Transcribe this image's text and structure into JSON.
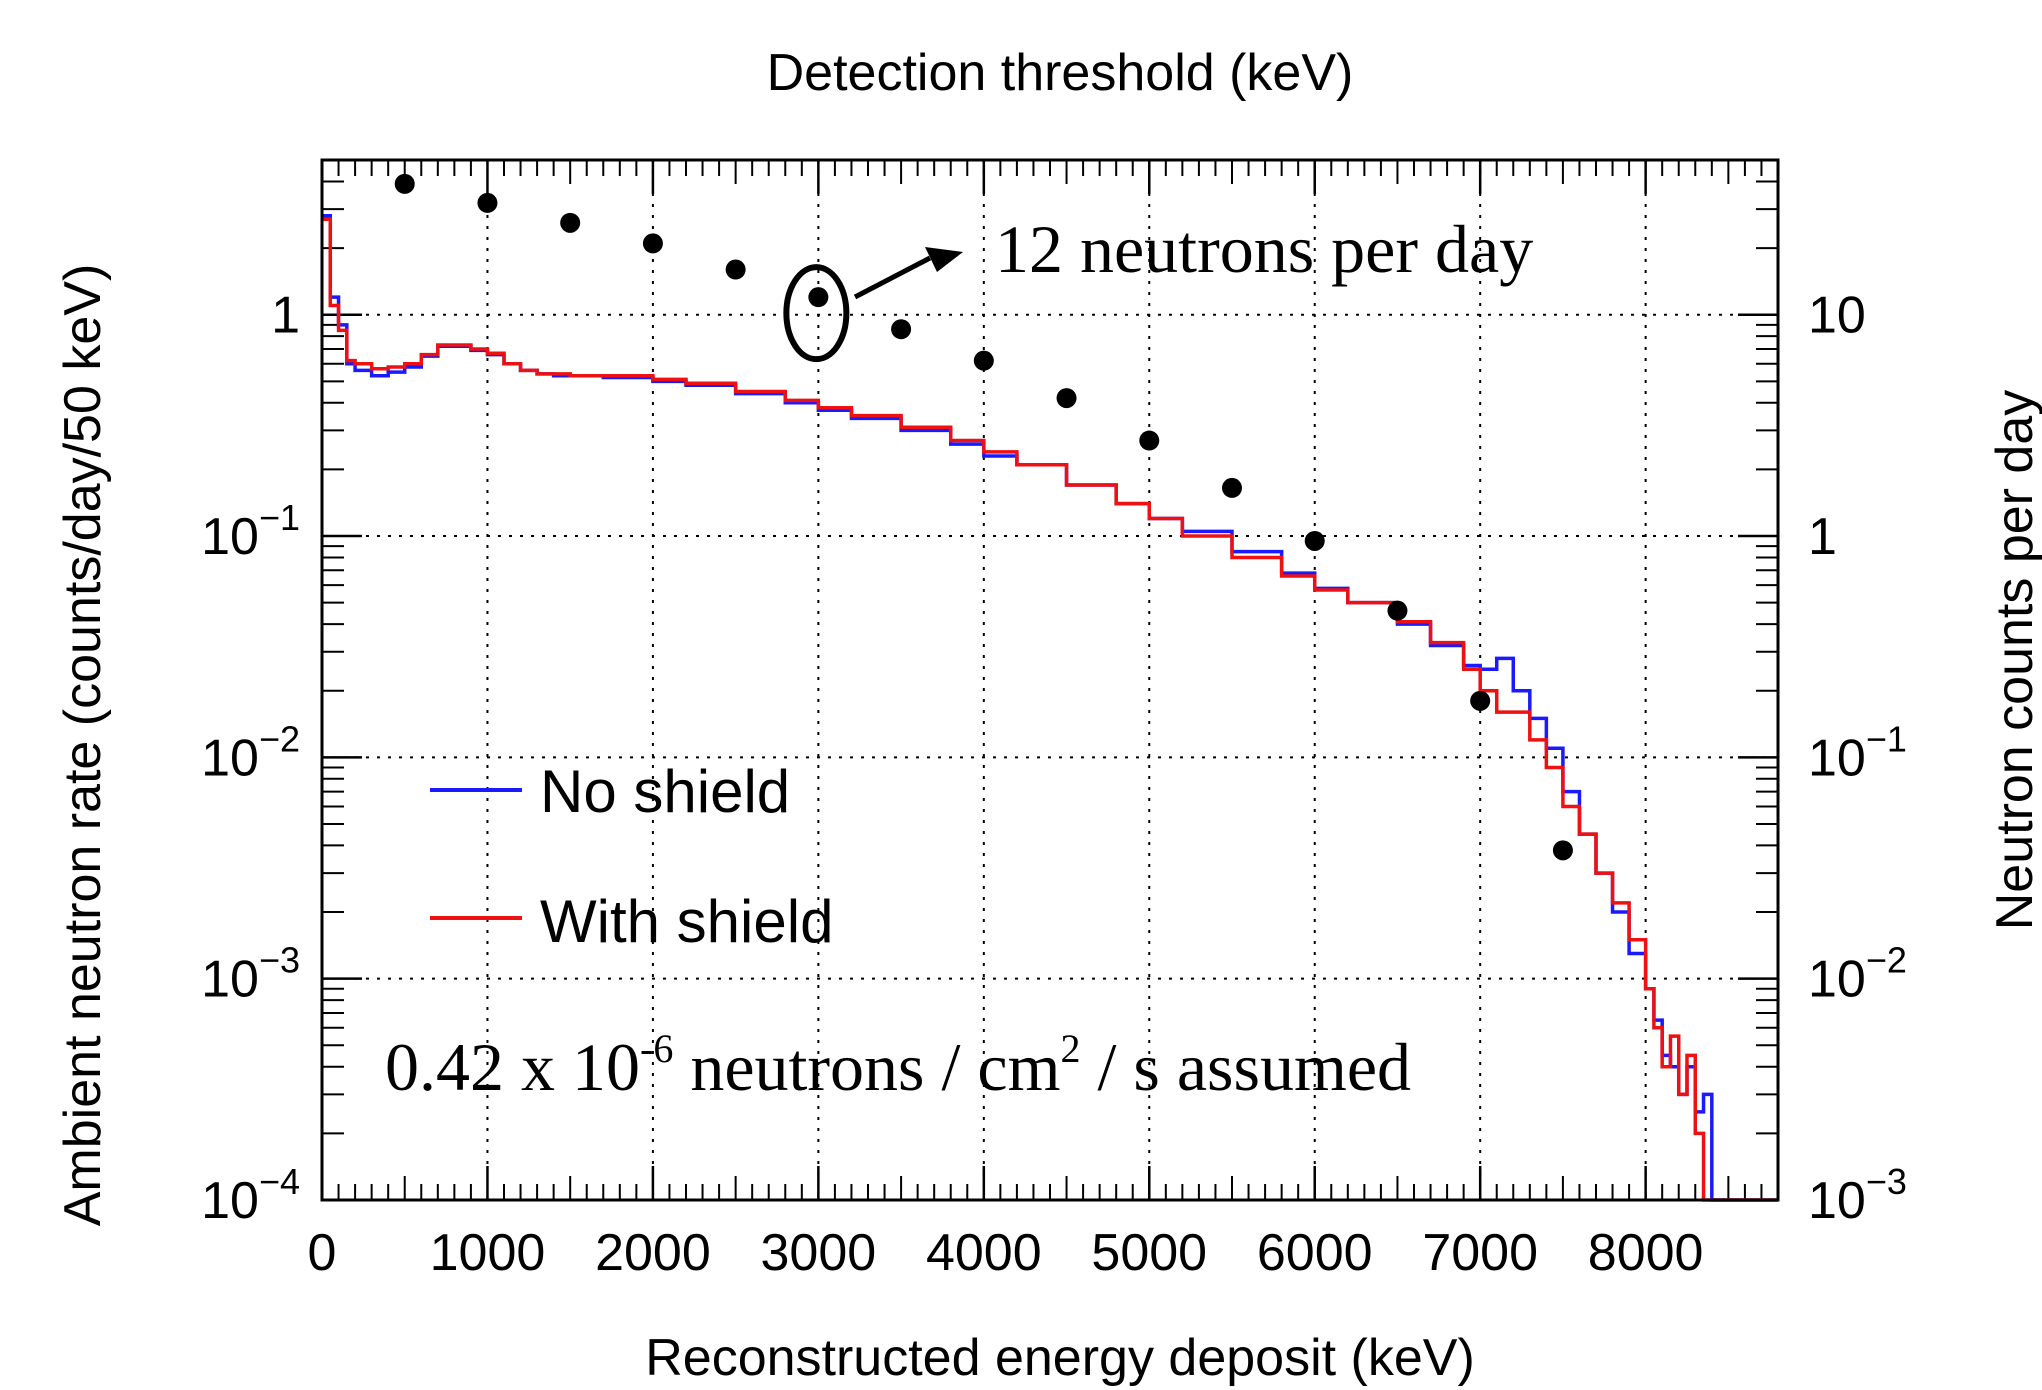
{
  "chart_data": {
    "type": "line",
    "title": "",
    "xlabel": "Reconstructed energy deposit (keV)",
    "x2label": "Detection threshold (keV)",
    "ylabel": "Ambient neutron rate (counts/day/50 keV)",
    "y2label": "Neutron counts per day",
    "xlim": [
      0,
      8800
    ],
    "ylim": [
      0.0001,
      5
    ],
    "y2lim": [
      0.001,
      50
    ],
    "yscale": "log",
    "grid": true,
    "xticks": [
      {
        "value": 0,
        "label": "0"
      },
      {
        "value": 1000,
        "label": "1000"
      },
      {
        "value": 2000,
        "label": "2000"
      },
      {
        "value": 3000,
        "label": "3000"
      },
      {
        "value": 4000,
        "label": "4000"
      },
      {
        "value": 5000,
        "label": "5000"
      },
      {
        "value": 6000,
        "label": "6000"
      },
      {
        "value": 7000,
        "label": "7000"
      },
      {
        "value": 8000,
        "label": "8000"
      }
    ],
    "yticks": [
      {
        "value": 1,
        "base": "1",
        "exp": ""
      },
      {
        "value": 0.1,
        "base": "10",
        "exp": "−1"
      },
      {
        "value": 0.01,
        "base": "10",
        "exp": "−2"
      },
      {
        "value": 0.001,
        "base": "10",
        "exp": "−3"
      },
      {
        "value": 0.0001,
        "base": "10",
        "exp": "−4"
      }
    ],
    "y2ticks": [
      {
        "value": 10,
        "base": "10",
        "exp": ""
      },
      {
        "value": 1,
        "base": "1",
        "exp": ""
      },
      {
        "value": 0.1,
        "base": "10",
        "exp": "−1"
      },
      {
        "value": 0.01,
        "base": "10",
        "exp": "−2"
      },
      {
        "value": 0.001,
        "base": "10",
        "exp": "−3"
      }
    ],
    "legend_position": "left",
    "series": [
      {
        "name": "No shield",
        "kind": "step",
        "axis": "left",
        "color": "#1a1aff",
        "x": [
          0,
          50,
          100,
          150,
          200,
          300,
          400,
          500,
          600,
          700,
          800,
          900,
          1000,
          1100,
          1200,
          1300,
          1400,
          1500,
          1700,
          2000,
          2200,
          2500,
          2800,
          3000,
          3200,
          3500,
          3800,
          4000,
          4200,
          4500,
          4800,
          5000,
          5200,
          5500,
          5800,
          6000,
          6200,
          6500,
          6700,
          6900,
          7000,
          7100,
          7200,
          7300,
          7400,
          7500,
          7600,
          7700,
          7800,
          7900,
          8000,
          8050,
          8100,
          8150,
          8200,
          8250,
          8300,
          8350,
          8400,
          8450,
          8800
        ],
        "y": [
          2.8,
          1.2,
          0.9,
          0.6,
          0.56,
          0.53,
          0.55,
          0.58,
          0.65,
          0.72,
          0.72,
          0.69,
          0.66,
          0.6,
          0.56,
          0.54,
          0.53,
          0.53,
          0.52,
          0.5,
          0.48,
          0.44,
          0.4,
          0.37,
          0.34,
          0.3,
          0.26,
          0.23,
          0.21,
          0.17,
          0.14,
          0.12,
          0.105,
          0.085,
          0.068,
          0.058,
          0.05,
          0.04,
          0.032,
          0.026,
          0.025,
          0.028,
          0.02,
          0.015,
          0.011,
          0.007,
          0.0045,
          0.003,
          0.002,
          0.0013,
          0.0009,
          0.00065,
          0.00045,
          0.0004,
          0.0003,
          0.0004,
          0.00025,
          0.0003,
          0.0001,
          0.0001,
          0.0001
        ]
      },
      {
        "name": "With shield",
        "kind": "step",
        "axis": "left",
        "color": "#ee1111",
        "x": [
          0,
          50,
          100,
          150,
          200,
          300,
          400,
          500,
          600,
          700,
          800,
          900,
          1000,
          1100,
          1200,
          1300,
          1400,
          1500,
          1700,
          2000,
          2200,
          2500,
          2800,
          3000,
          3200,
          3500,
          3800,
          4000,
          4200,
          4500,
          4800,
          5000,
          5200,
          5500,
          5800,
          6000,
          6200,
          6500,
          6700,
          6900,
          7000,
          7100,
          7200,
          7300,
          7400,
          7500,
          7600,
          7700,
          7800,
          7900,
          8000,
          8050,
          8100,
          8150,
          8200,
          8250,
          8300,
          8350,
          8800
        ],
        "y": [
          2.7,
          1.1,
          0.85,
          0.62,
          0.6,
          0.57,
          0.58,
          0.6,
          0.66,
          0.73,
          0.73,
          0.7,
          0.67,
          0.6,
          0.56,
          0.54,
          0.54,
          0.53,
          0.53,
          0.51,
          0.49,
          0.45,
          0.41,
          0.38,
          0.35,
          0.31,
          0.27,
          0.24,
          0.21,
          0.17,
          0.14,
          0.12,
          0.1,
          0.08,
          0.066,
          0.057,
          0.05,
          0.041,
          0.033,
          0.025,
          0.02,
          0.016,
          0.016,
          0.012,
          0.009,
          0.006,
          0.0045,
          0.003,
          0.0022,
          0.0015,
          0.0009,
          0.0006,
          0.0004,
          0.00055,
          0.0003,
          0.00045,
          0.0002,
          0.0001,
          0.0001
        ]
      },
      {
        "name": "",
        "kind": "points",
        "axis": "right",
        "color": "#000000",
        "x": [
          500,
          1000,
          1500,
          2000,
          2500,
          3000,
          3500,
          4000,
          4500,
          5000,
          5500,
          6000,
          6500,
          7000,
          7500
        ],
        "y": [
          39,
          32,
          26,
          21,
          16,
          12,
          8.6,
          6.2,
          4.2,
          2.7,
          1.65,
          0.95,
          0.46,
          0.18,
          0.038
        ]
      }
    ],
    "annotations": [
      {
        "text": "12 neutrons per day",
        "x": 3000,
        "y_right": 12,
        "type": "arrow-callout"
      },
      {
        "base": "0.42 x 10",
        "exp": "-6",
        "mid": " neutrons / cm",
        "exp2": "2",
        "tail": " / s assumed",
        "type": "text"
      }
    ]
  }
}
